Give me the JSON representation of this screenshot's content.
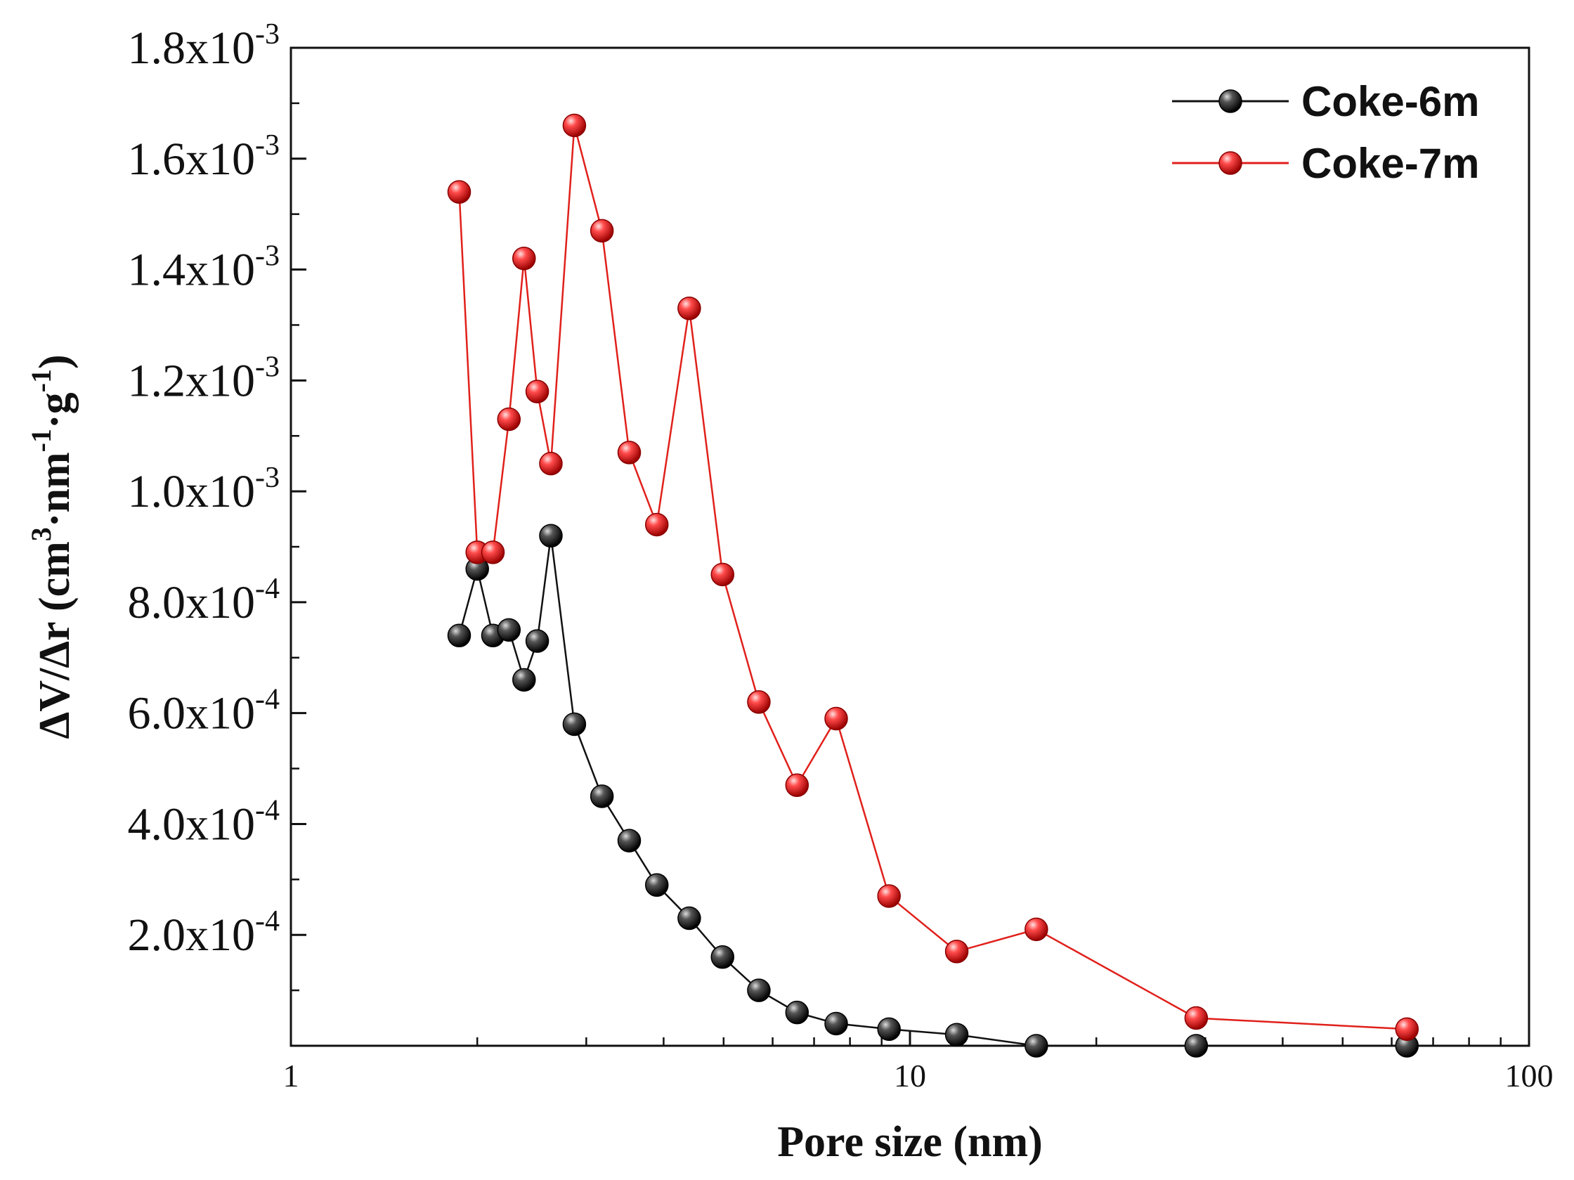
{
  "chart_data": {
    "type": "line",
    "title": "",
    "xlabel": "Pore size (nm)",
    "ylabel_main": "ΔV/Δr (cm",
    "ylabel_sup1": "3",
    "ylabel_mid1": "·nm",
    "ylabel_sup2": "-1",
    "ylabel_mid2": "·g",
    "ylabel_sup3": "-1",
    "ylabel_end": ")",
    "xscale": "log",
    "xlim": [
      1,
      100
    ],
    "ylim": [
      0,
      0.0018
    ],
    "x_ticks": [
      {
        "value": 1,
        "label": "1"
      },
      {
        "value": 10,
        "label": "10"
      },
      {
        "value": 100,
        "label": "100"
      }
    ],
    "y_ticks": [
      {
        "value": 0.0002,
        "mantissa": "2.0x10",
        "exp": "-4"
      },
      {
        "value": 0.0004,
        "mantissa": "4.0x10",
        "exp": "-4"
      },
      {
        "value": 0.0006,
        "mantissa": "6.0x10",
        "exp": "-4"
      },
      {
        "value": 0.0008,
        "mantissa": "8.0x10",
        "exp": "-4"
      },
      {
        "value": 0.001,
        "mantissa": "1.0x10",
        "exp": "-3"
      },
      {
        "value": 0.0012,
        "mantissa": "1.2x10",
        "exp": "-3"
      },
      {
        "value": 0.0014,
        "mantissa": "1.4x10",
        "exp": "-3"
      },
      {
        "value": 0.0016,
        "mantissa": "1.6x10",
        "exp": "-3"
      },
      {
        "value": 0.0018,
        "mantissa": "1.8x10",
        "exp": "-3"
      }
    ],
    "legend_position": "top-right",
    "series": [
      {
        "name": "Coke-6m",
        "color": "#111111",
        "marker": "sphere",
        "x": [
          1.87,
          2.0,
          2.12,
          2.25,
          2.38,
          2.5,
          2.63,
          2.87,
          3.18,
          3.52,
          3.9,
          4.4,
          4.98,
          5.7,
          6.57,
          7.6,
          9.25,
          11.9,
          16.0,
          29.0,
          63.5
        ],
        "y": [
          0.00074,
          0.00086,
          0.00074,
          0.00075,
          0.00066,
          0.00073,
          0.00092,
          0.00058,
          0.00045,
          0.00037,
          0.00029,
          0.00023,
          0.00016,
          0.0001,
          6e-05,
          4e-05,
          3e-05,
          2e-05,
          0.0,
          0.0,
          0.0
        ]
      },
      {
        "name": "Coke-7m",
        "color": "#e0201b",
        "marker": "sphere",
        "x": [
          1.87,
          2.0,
          2.12,
          2.25,
          2.38,
          2.5,
          2.63,
          2.87,
          3.18,
          3.52,
          3.9,
          4.4,
          4.98,
          5.7,
          6.57,
          7.6,
          9.25,
          11.9,
          16.0,
          29.0,
          63.5
        ],
        "y": [
          0.00154,
          0.00089,
          0.00089,
          0.00113,
          0.00142,
          0.00118,
          0.00105,
          0.00166,
          0.00147,
          0.00107,
          0.00094,
          0.00133,
          0.00085,
          0.00062,
          0.00047,
          0.00059,
          0.00027,
          0.00017,
          0.00021,
          5e-05,
          3e-05
        ]
      }
    ]
  }
}
